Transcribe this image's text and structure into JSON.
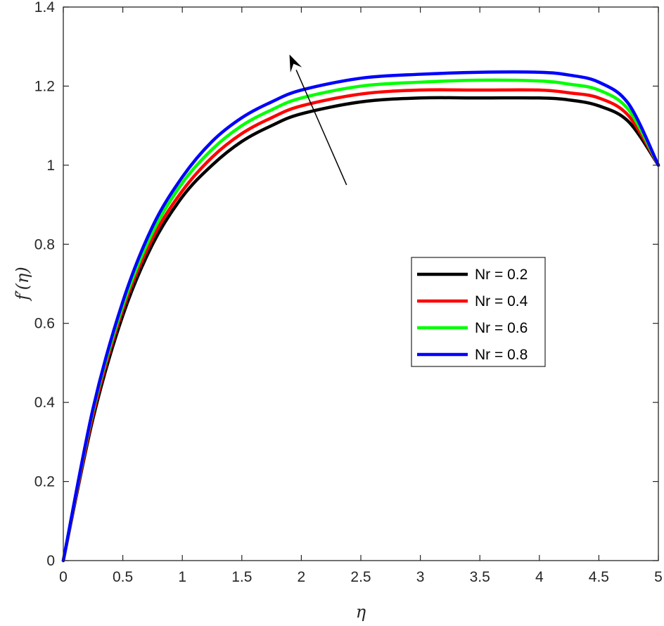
{
  "chart_data": {
    "type": "line",
    "title": "",
    "xlabel": "η",
    "ylabel": "f′(η)",
    "xlim": [
      0,
      5
    ],
    "ylim": [
      0,
      1.4
    ],
    "xticks": [
      0,
      0.5,
      1,
      1.5,
      2,
      2.5,
      3,
      3.5,
      4,
      4.5,
      5
    ],
    "xtick_labels": [
      "0",
      "0.5",
      "1",
      "1.5",
      "2",
      "2.5",
      "3",
      "3.5",
      "4",
      "4.5",
      "5"
    ],
    "yticks": [
      0,
      0.2,
      0.4,
      0.6,
      0.8,
      1,
      1.2,
      1.4
    ],
    "ytick_labels": [
      "0",
      "0.2",
      "0.4",
      "0.6",
      "0.8",
      "1",
      "1.2",
      "1.4"
    ],
    "grid": false,
    "legend_position": "center-right",
    "x": [
      0,
      0.25,
      0.5,
      0.75,
      1,
      1.25,
      1.5,
      1.75,
      2,
      2.5,
      3,
      3.5,
      4,
      4.25,
      4.5,
      4.75,
      5
    ],
    "series": [
      {
        "name": "Nr = 0.2",
        "color": "#000000",
        "values": [
          0,
          0.36,
          0.62,
          0.8,
          0.92,
          1.0,
          1.06,
          1.1,
          1.13,
          1.16,
          1.17,
          1.17,
          1.17,
          1.165,
          1.15,
          1.11,
          1.0
        ]
      },
      {
        "name": "Nr = 0.4",
        "color": "#ff0000",
        "values": [
          0,
          0.37,
          0.635,
          0.815,
          0.935,
          1.02,
          1.08,
          1.12,
          1.15,
          1.18,
          1.19,
          1.19,
          1.19,
          1.183,
          1.17,
          1.125,
          1.0
        ]
      },
      {
        "name": "Nr = 0.6",
        "color": "#00ff00",
        "values": [
          0,
          0.38,
          0.645,
          0.83,
          0.955,
          1.04,
          1.1,
          1.14,
          1.17,
          1.2,
          1.21,
          1.215,
          1.213,
          1.205,
          1.19,
          1.14,
          1.0
        ]
      },
      {
        "name": "Nr = 0.8",
        "color": "#0000ff",
        "values": [
          0,
          0.385,
          0.655,
          0.845,
          0.97,
          1.06,
          1.12,
          1.16,
          1.19,
          1.22,
          1.23,
          1.235,
          1.235,
          1.228,
          1.21,
          1.155,
          1.0
        ]
      }
    ],
    "annotations": [
      {
        "type": "arrow",
        "from": [
          2.38,
          0.95
        ],
        "to": [
          1.9,
          1.28
        ],
        "color": "#000000",
        "meaning": "increasing Nr"
      }
    ]
  }
}
